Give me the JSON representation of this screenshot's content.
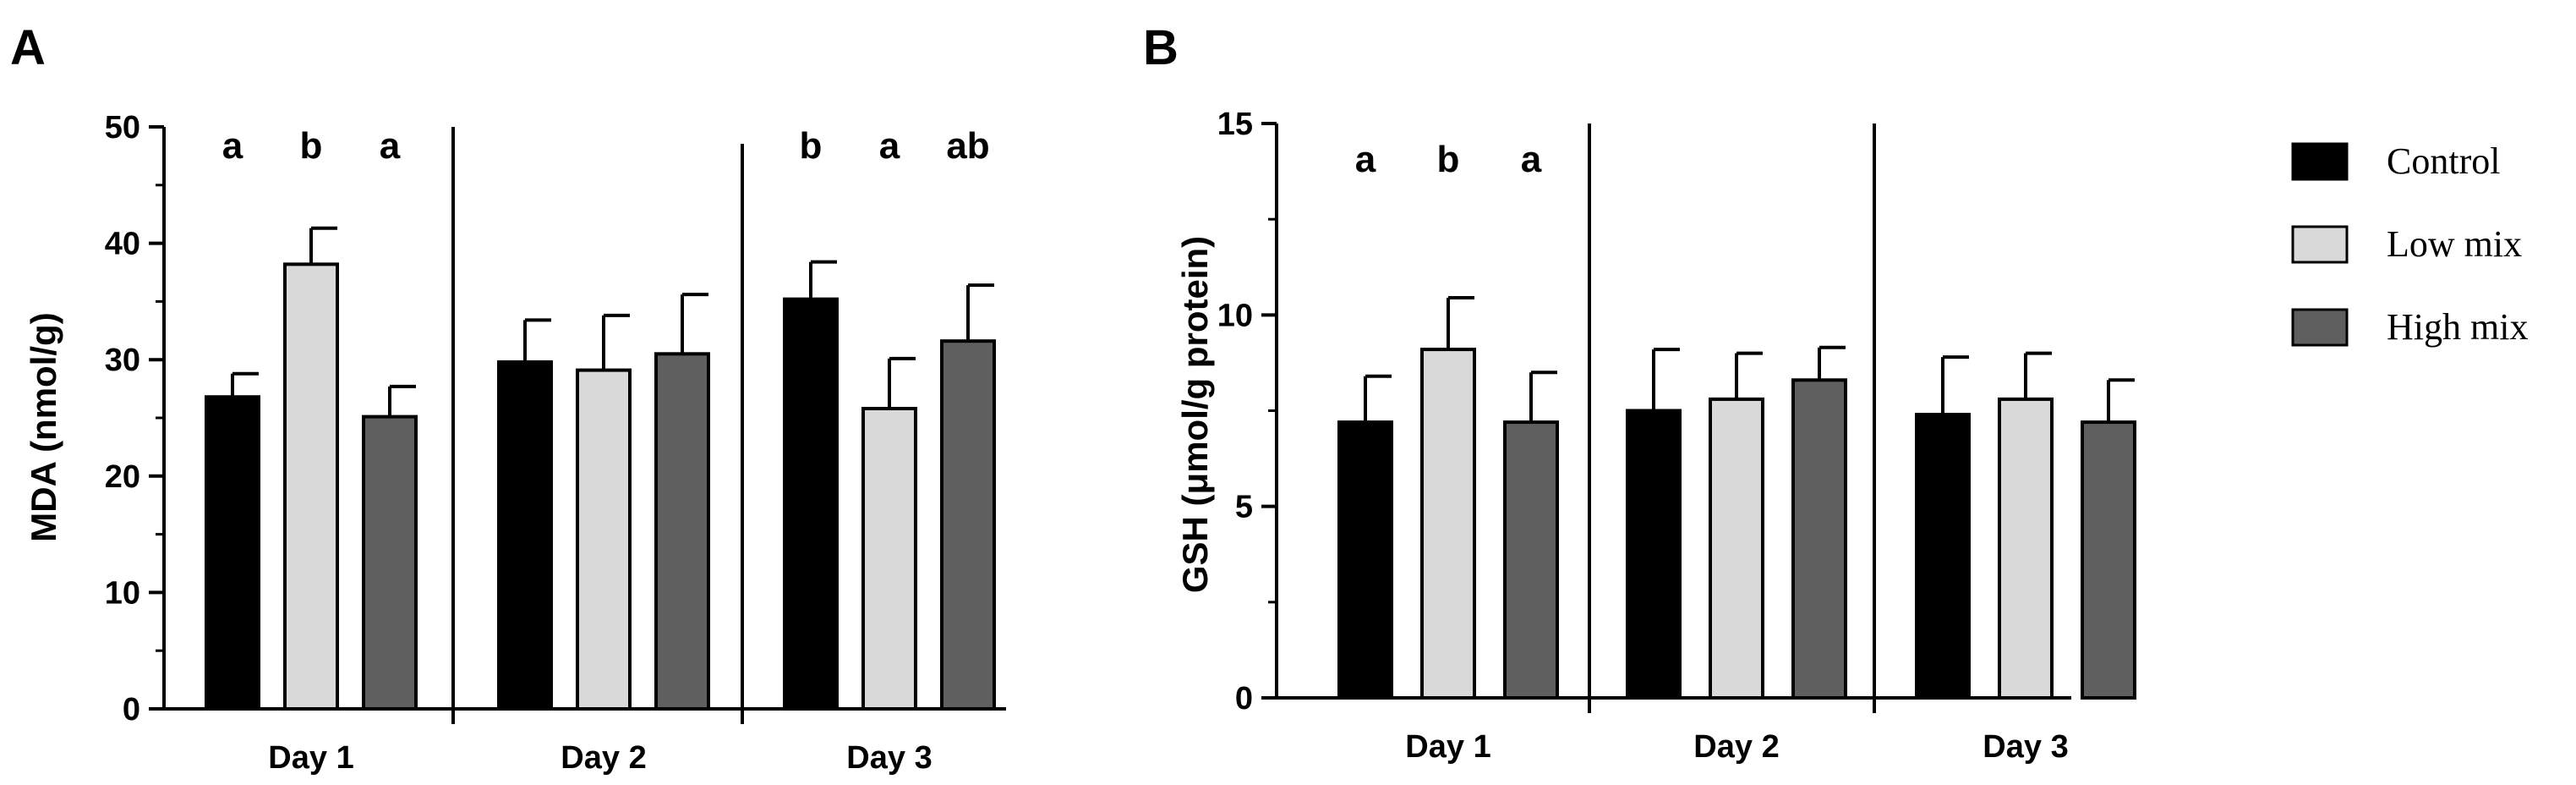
{
  "chart_data": [
    {
      "panel_label": "A",
      "type": "bar",
      "ylabel": "MDA (nmol/g)",
      "xlabel": "",
      "ylim": [
        0,
        50
      ],
      "yticks": [
        "0",
        "10",
        "20",
        "30",
        "40",
        "50"
      ],
      "categories": [
        "Day 1",
        "Day 2",
        "Day 3"
      ],
      "series": [
        {
          "name": "Control",
          "color": "#000000",
          "values": [
            26.8,
            29.8,
            35.2
          ],
          "errors": [
            2.0,
            3.6,
            3.2
          ]
        },
        {
          "name": "Low mix",
          "color": "#d9d9d9",
          "values": [
            38.2,
            29.1,
            25.8
          ],
          "errors": [
            3.1,
            4.7,
            4.3
          ]
        },
        {
          "name": "High mix",
          "color": "#5f5f5f",
          "values": [
            25.1,
            30.5,
            31.6
          ],
          "errors": [
            2.6,
            5.1,
            4.8
          ]
        }
      ],
      "significance": [
        [
          "a",
          "b",
          "a"
        ],
        [
          "",
          "",
          ""
        ],
        [
          "b",
          "a",
          "ab"
        ]
      ]
    },
    {
      "panel_label": "B",
      "type": "bar",
      "ylabel": "GSH (μmol/g protein)",
      "xlabel": "",
      "ylim": [
        0,
        15
      ],
      "yticks": [
        "0",
        "5",
        "10",
        "15"
      ],
      "categories": [
        "Day 1",
        "Day 2",
        "Day 3"
      ],
      "series": [
        {
          "name": "Control",
          "color": "#000000",
          "values": [
            7.2,
            7.5,
            7.4
          ],
          "errors": [
            1.2,
            1.6,
            1.5
          ]
        },
        {
          "name": "Low mix",
          "color": "#d9d9d9",
          "values": [
            9.1,
            7.8,
            7.8
          ],
          "errors": [
            1.35,
            1.2,
            1.2
          ]
        },
        {
          "name": "High mix",
          "color": "#5f5f5f",
          "values": [
            7.2,
            8.3,
            7.2
          ],
          "errors": [
            1.3,
            0.85,
            1.1
          ]
        }
      ],
      "significance": [
        [
          "a",
          "b",
          "a"
        ],
        [
          "",
          "",
          ""
        ],
        [
          "",
          "",
          ""
        ]
      ]
    }
  ],
  "legend": {
    "items": [
      {
        "label": "Control",
        "color": "#000000"
      },
      {
        "label": "Low mix",
        "color": "#d9d9d9"
      },
      {
        "label": "High mix",
        "color": "#5f5f5f"
      }
    ],
    "placement": "right"
  }
}
